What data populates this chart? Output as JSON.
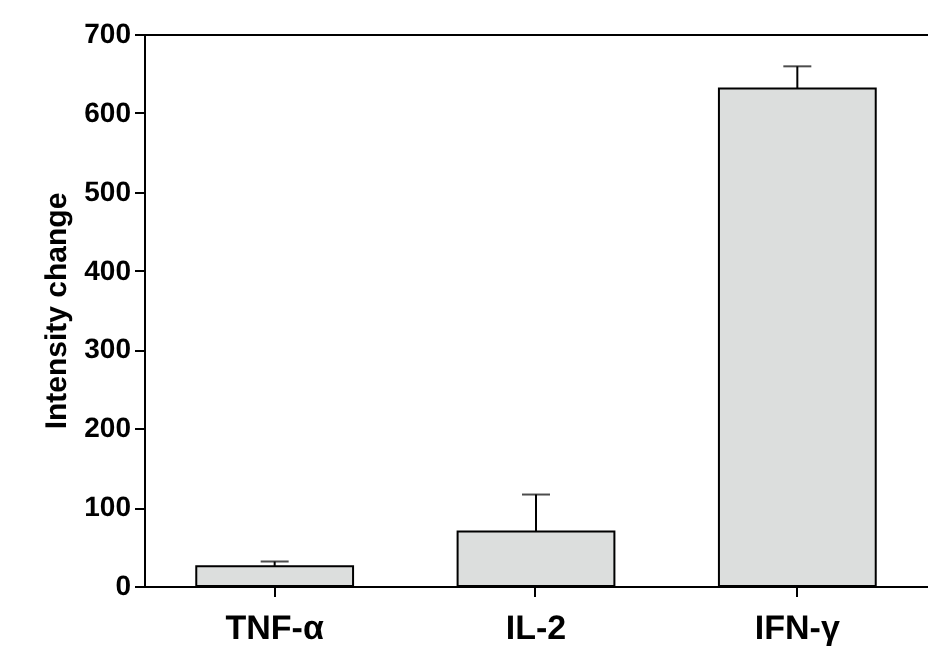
{
  "chart_data": {
    "type": "bar",
    "ylabel": "Intensity change",
    "categories": [
      "TNF-α",
      "IL-2",
      "IFN-γ"
    ],
    "values": [
      25,
      69,
      631
    ],
    "errors": [
      [
        25,
        31
      ],
      [
        69,
        116
      ],
      [
        631,
        659
      ]
    ],
    "color": "#dcdedd",
    "ylim": [
      0,
      700
    ],
    "yticks": [
      0,
      100,
      200,
      300,
      400,
      500,
      600,
      700
    ],
    "grid": false
  }
}
